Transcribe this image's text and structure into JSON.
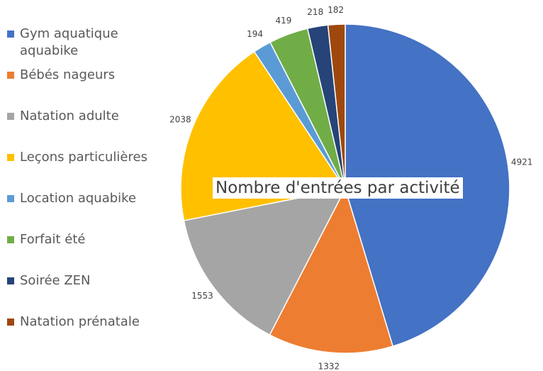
{
  "chart_data": {
    "type": "pie",
    "title": "Nombre d'entrées par activité",
    "categories": [
      "Gym aquatique aquabike",
      "Bébés nageurs",
      "Natation adulte",
      "Leçons particulières",
      "Location aquabike",
      "Forfait été",
      "Soirée ZEN",
      "Natation prénatale"
    ],
    "values": [
      4921,
      1332,
      1553,
      2038,
      194,
      419,
      218,
      182
    ],
    "colors": [
      "#4472c4",
      "#ed7d31",
      "#a5a5a5",
      "#ffc000",
      "#5b9bd5",
      "#70ad47",
      "#264478",
      "#9e480e"
    ],
    "legend": "left"
  }
}
